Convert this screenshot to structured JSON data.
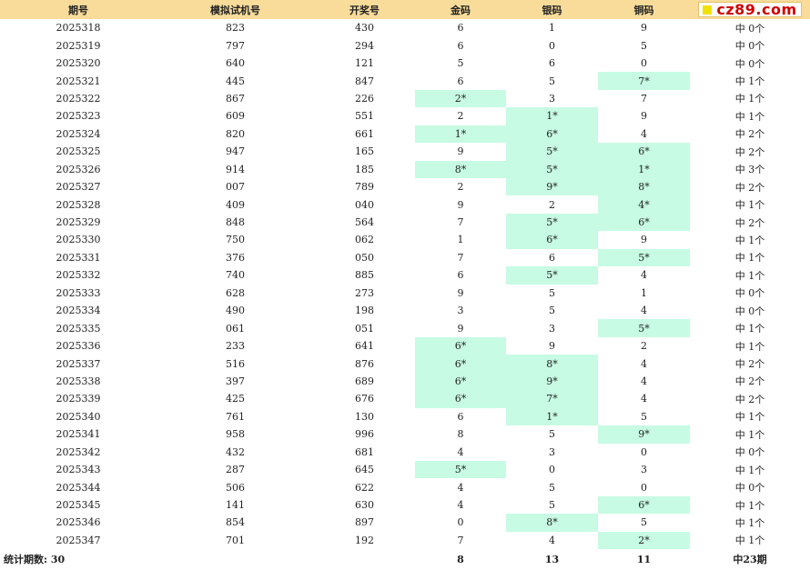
{
  "header": {
    "period": "期号",
    "sim": "模拟试机号",
    "draw": "开奖号",
    "gold": "金码",
    "silver": "银码",
    "bronze": "铜码"
  },
  "logo": {
    "text": "cz89.com"
  },
  "colors": {
    "header_bg": "#f9dc9a",
    "hit_bg": "#c7fbe4",
    "logo_red": "#d00000",
    "logo_yellow": "#f2e200"
  },
  "rows": [
    {
      "period": "2025318",
      "sim": "823",
      "draw": "430",
      "gold": "6",
      "silver": "1",
      "bronze": "9",
      "result": "中 0个"
    },
    {
      "period": "2025319",
      "sim": "797",
      "draw": "294",
      "gold": "6",
      "silver": "0",
      "bronze": "5",
      "result": "中 0个"
    },
    {
      "period": "2025320",
      "sim": "640",
      "draw": "121",
      "gold": "5",
      "silver": "6",
      "bronze": "0",
      "result": "中 0个"
    },
    {
      "period": "2025321",
      "sim": "445",
      "draw": "847",
      "gold": "6",
      "silver": "5",
      "bronze": "7*",
      "result": "中 1个"
    },
    {
      "period": "2025322",
      "sim": "867",
      "draw": "226",
      "gold": "2*",
      "silver": "3",
      "bronze": "7",
      "result": "中 1个"
    },
    {
      "period": "2025323",
      "sim": "609",
      "draw": "551",
      "gold": "2",
      "silver": "1*",
      "bronze": "9",
      "result": "中 1个"
    },
    {
      "period": "2025324",
      "sim": "820",
      "draw": "661",
      "gold": "1*",
      "silver": "6*",
      "bronze": "4",
      "result": "中 2个"
    },
    {
      "period": "2025325",
      "sim": "947",
      "draw": "165",
      "gold": "9",
      "silver": "5*",
      "bronze": "6*",
      "result": "中 2个"
    },
    {
      "period": "2025326",
      "sim": "914",
      "draw": "185",
      "gold": "8*",
      "silver": "5*",
      "bronze": "1*",
      "result": "中 3个"
    },
    {
      "period": "2025327",
      "sim": "007",
      "draw": "789",
      "gold": "2",
      "silver": "9*",
      "bronze": "8*",
      "result": "中 2个"
    },
    {
      "period": "2025328",
      "sim": "409",
      "draw": "040",
      "gold": "9",
      "silver": "2",
      "bronze": "4*",
      "result": "中 1个"
    },
    {
      "period": "2025329",
      "sim": "848",
      "draw": "564",
      "gold": "7",
      "silver": "5*",
      "bronze": "6*",
      "result": "中 2个"
    },
    {
      "period": "2025330",
      "sim": "750",
      "draw": "062",
      "gold": "1",
      "silver": "6*",
      "bronze": "9",
      "result": "中 1个"
    },
    {
      "period": "2025331",
      "sim": "376",
      "draw": "050",
      "gold": "7",
      "silver": "6",
      "bronze": "5*",
      "result": "中 1个"
    },
    {
      "period": "2025332",
      "sim": "740",
      "draw": "885",
      "gold": "6",
      "silver": "5*",
      "bronze": "4",
      "result": "中 1个"
    },
    {
      "period": "2025333",
      "sim": "628",
      "draw": "273",
      "gold": "9",
      "silver": "5",
      "bronze": "1",
      "result": "中 0个"
    },
    {
      "period": "2025334",
      "sim": "490",
      "draw": "198",
      "gold": "3",
      "silver": "5",
      "bronze": "4",
      "result": "中 0个"
    },
    {
      "period": "2025335",
      "sim": "061",
      "draw": "051",
      "gold": "9",
      "silver": "3",
      "bronze": "5*",
      "result": "中 1个"
    },
    {
      "period": "2025336",
      "sim": "233",
      "draw": "641",
      "gold": "6*",
      "silver": "9",
      "bronze": "2",
      "result": "中 1个"
    },
    {
      "period": "2025337",
      "sim": "516",
      "draw": "876",
      "gold": "6*",
      "silver": "8*",
      "bronze": "4",
      "result": "中 2个"
    },
    {
      "period": "2025338",
      "sim": "397",
      "draw": "689",
      "gold": "6*",
      "silver": "9*",
      "bronze": "4",
      "result": "中 2个"
    },
    {
      "period": "2025339",
      "sim": "425",
      "draw": "676",
      "gold": "6*",
      "silver": "7*",
      "bronze": "4",
      "result": "中 2个"
    },
    {
      "period": "2025340",
      "sim": "761",
      "draw": "130",
      "gold": "6",
      "silver": "1*",
      "bronze": "5",
      "result": "中 1个"
    },
    {
      "period": "2025341",
      "sim": "958",
      "draw": "996",
      "gold": "8",
      "silver": "5",
      "bronze": "9*",
      "result": "中 1个"
    },
    {
      "period": "2025342",
      "sim": "432",
      "draw": "681",
      "gold": "4",
      "silver": "3",
      "bronze": "0",
      "result": "中 0个"
    },
    {
      "period": "2025343",
      "sim": "287",
      "draw": "645",
      "gold": "5*",
      "silver": "0",
      "bronze": "3",
      "result": "中 1个"
    },
    {
      "period": "2025344",
      "sim": "506",
      "draw": "622",
      "gold": "4",
      "silver": "5",
      "bronze": "0",
      "result": "中 0个"
    },
    {
      "period": "2025345",
      "sim": "141",
      "draw": "630",
      "gold": "4",
      "silver": "5",
      "bronze": "6*",
      "result": "中 1个"
    },
    {
      "period": "2025346",
      "sim": "854",
      "draw": "897",
      "gold": "0",
      "silver": "8*",
      "bronze": "5",
      "result": "中 1个"
    },
    {
      "period": "2025347",
      "sim": "701",
      "draw": "192",
      "gold": "7",
      "silver": "4",
      "bronze": "2*",
      "result": "中 1个"
    }
  ],
  "footer": {
    "label": "统计期数: 30",
    "gold_total": "8",
    "silver_total": "13",
    "bronze_total": "11",
    "result_total": "中23期"
  }
}
